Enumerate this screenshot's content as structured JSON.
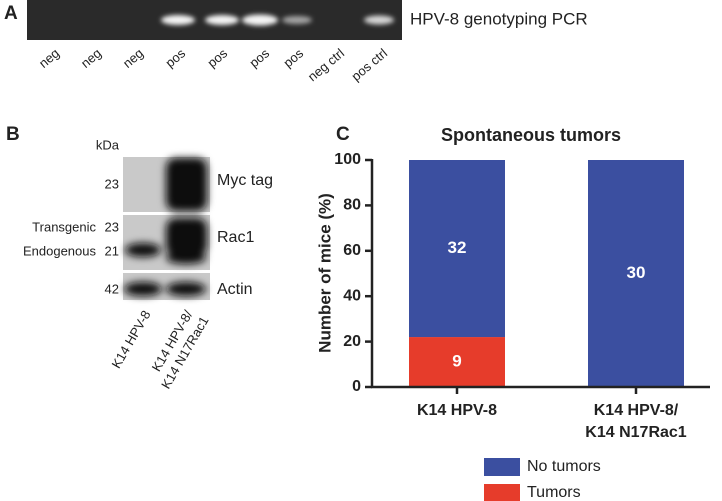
{
  "panel_a": {
    "letter": "A",
    "title": "HPV-8 genotyping PCR",
    "lanes": [
      "neg",
      "neg",
      "neg",
      "pos",
      "pos",
      "pos",
      "pos",
      "neg ctrl",
      "pos ctrl"
    ]
  },
  "panel_b": {
    "letter": "B",
    "unit": "kDa",
    "blots": [
      {
        "label": "Myc tag",
        "markers": [
          {
            "kda": 23
          }
        ]
      },
      {
        "label": "Rac1",
        "markers": [
          {
            "name": "Transgenic",
            "kda": 23
          },
          {
            "name": "Endogenous",
            "kda": 21
          }
        ]
      },
      {
        "label": "Actin",
        "markers": [
          {
            "kda": 42
          }
        ]
      }
    ],
    "lanes": [
      [
        "K14 HPV-8"
      ],
      [
        "K14 HPV-8/",
        "K14 N17Rac1"
      ]
    ]
  },
  "chart_data": {
    "type": "stacked_bar",
    "letter": "C",
    "title": "Spontaneous tumors",
    "y_label": "Number of mice (%)",
    "categories": [
      [
        "K14 HPV-8"
      ],
      [
        "K14 HPV-8/",
        "K14 N17Rac1"
      ]
    ],
    "series": [
      {
        "name": "No tumors",
        "color": "#3b4fa0",
        "values": [
          78,
          100
        ],
        "counts": [
          32,
          30
        ]
      },
      {
        "name": "Tumors",
        "color": "#e63c2b",
        "values": [
          22,
          0
        ],
        "counts": [
          9,
          null
        ]
      }
    ],
    "ylim": [
      0,
      100
    ],
    "yticks": [
      0,
      20,
      40,
      60,
      80,
      100
    ]
  }
}
